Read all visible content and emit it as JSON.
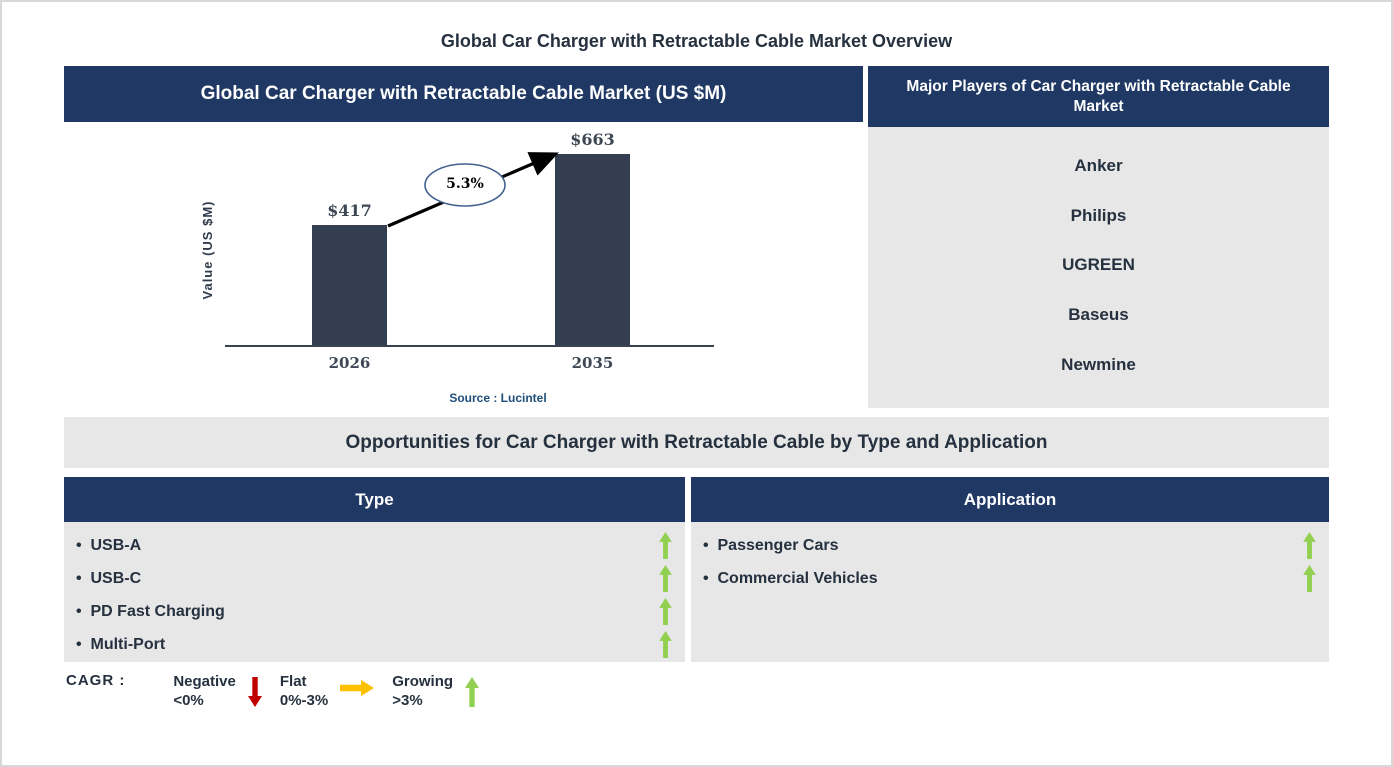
{
  "page": {
    "title": "Global Car Charger with Retractable Cable Market Overview"
  },
  "market_panel": {
    "header": "Global Car Charger with Retractable Cable Market (US $M)"
  },
  "chart_data": {
    "type": "bar",
    "title": "Global Car Charger with Retractable Cable Market (US $M)",
    "categories": [
      "2026",
      "2035"
    ],
    "values": [
      417,
      663
    ],
    "bar_labels": [
      "$417",
      "$663"
    ],
    "ylabel": "Value (US $M)",
    "xlabel": "",
    "cagr_annotation": "5.3%",
    "source": "Source : Lucintel",
    "bar_color": "#333F50",
    "grid": "off",
    "ylim": [
      0,
      700
    ]
  },
  "players_panel": {
    "header": "Major Players of Car Charger with Retractable Cable Market",
    "players": [
      "Anker",
      "Philips",
      "UGREEN",
      "Baseus",
      "Newmine"
    ]
  },
  "opportunities": {
    "title": "Opportunities for Car Charger with Retractable Cable by Type and Application",
    "type_column": {
      "header": "Type",
      "items": [
        {
          "label": "USB-A",
          "trend": "growing"
        },
        {
          "label": "USB-C",
          "trend": "growing"
        },
        {
          "label": "PD Fast Charging",
          "trend": "growing"
        },
        {
          "label": "Multi-Port",
          "trend": "growing"
        }
      ]
    },
    "application_column": {
      "header": "Application",
      "items": [
        {
          "label": "Passenger Cars",
          "trend": "growing"
        },
        {
          "label": "Commercial Vehicles",
          "trend": "growing"
        }
      ]
    }
  },
  "legend": {
    "label": "CAGR :",
    "items": [
      {
        "name": "Negative",
        "range": "<0%",
        "direction": "down",
        "color": "#C00000"
      },
      {
        "name": "Flat",
        "range": "0%-3%",
        "direction": "right",
        "color": "#FFC000"
      },
      {
        "name": "Growing",
        "range": ">3%",
        "direction": "up",
        "color": "#92D050"
      }
    ]
  },
  "colors": {
    "header_navy": "#1F3864",
    "panel_gray": "#E7E7E7",
    "bar_fill": "#333F50",
    "growing_green": "#92D050",
    "flat_yellow": "#FFC000",
    "negative_red": "#C00000",
    "source_blue": "#1F4E79",
    "dark_text": "#26313F"
  }
}
